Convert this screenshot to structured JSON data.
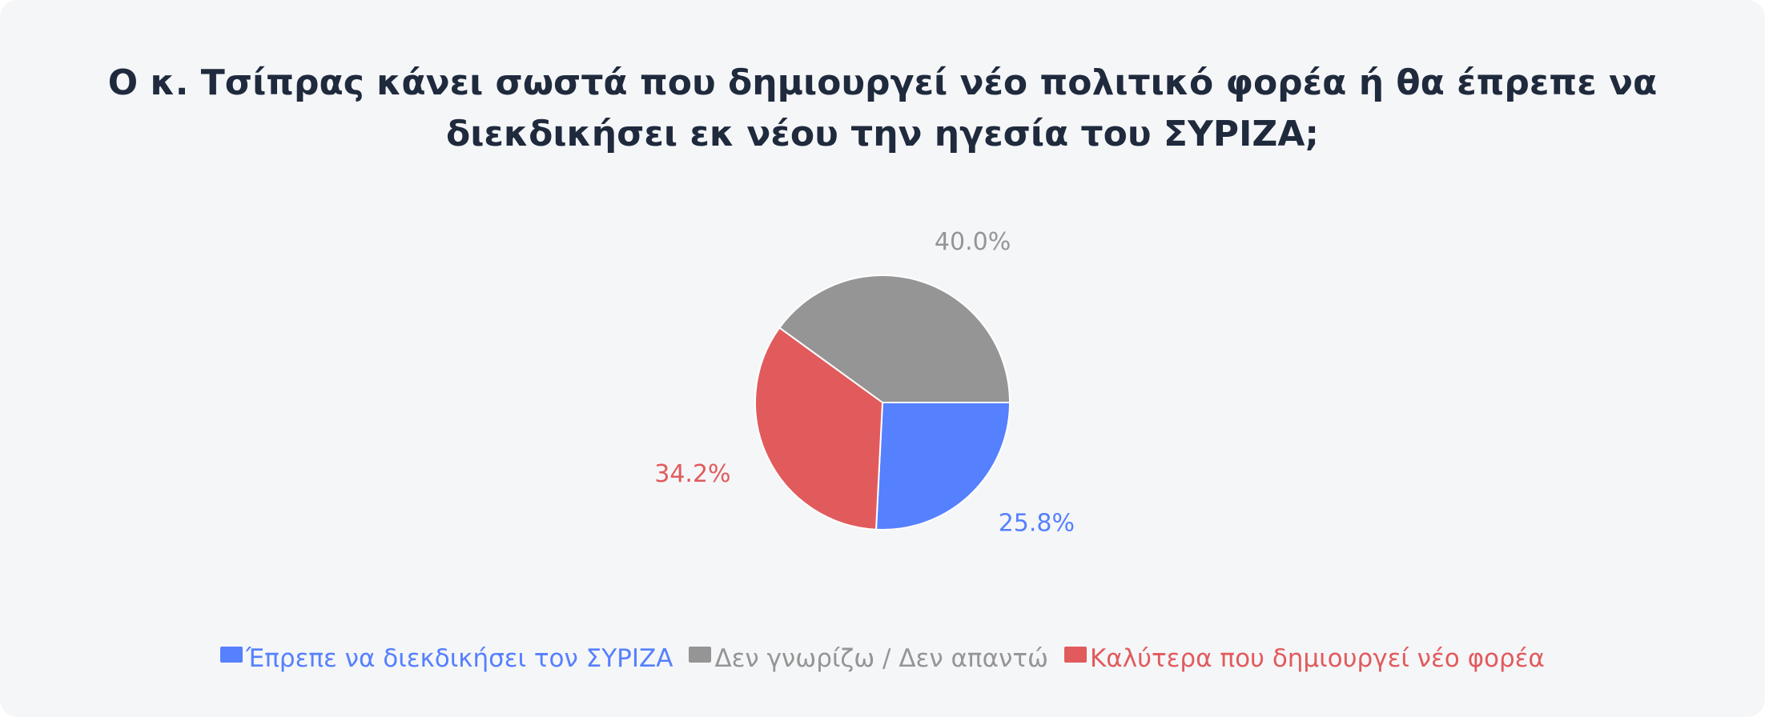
{
  "title": "Ο κ. Τσίπρας κάνει σωστά που δημιουργεί νέο πολιτικό φορέα ή θα έπρεπε να διεκδικήσει εκ νέου την ηγεσία του ΣΥΡΙΖΑ;",
  "chart_data": {
    "type": "pie",
    "title": "Ο κ. Τσίπρας κάνει σωστά που δημιουργεί νέο πολιτικό φορέα ή θα έπρεπε να διεκδικήσει εκ νέου την ηγεσία του ΣΥΡΙΖΑ;",
    "start_angle_deg": 0,
    "direction": "clockwise",
    "legend_position": "bottom",
    "slices": [
      {
        "label": "Έπρεπε να διεκδικήσει τον ΣΥΡΙΖΑ",
        "value": 25.8,
        "display": "25.8%",
        "color": "#5580fe"
      },
      {
        "label": "Καλύτερα που δημιουργεί νέο φορέα",
        "value": 34.2,
        "display": "34.2%",
        "color": "#e15b5d"
      },
      {
        "label": "Δεν γνωρίζω / Δεν απαντώ",
        "value": 40.0,
        "display": "40.0%",
        "color": "#959595"
      }
    ],
    "legend_order": [
      {
        "label": "Έπρεπε να διεκδικήσει τον ΣΥΡΙΖΑ",
        "color": "#5580fe"
      },
      {
        "label": "Δεν γνωρίζω / Δεν απαντώ",
        "color": "#959595"
      },
      {
        "label": "Καλύτερα που δημιουργεί νέο φορέα",
        "color": "#e15b5d"
      }
    ]
  }
}
